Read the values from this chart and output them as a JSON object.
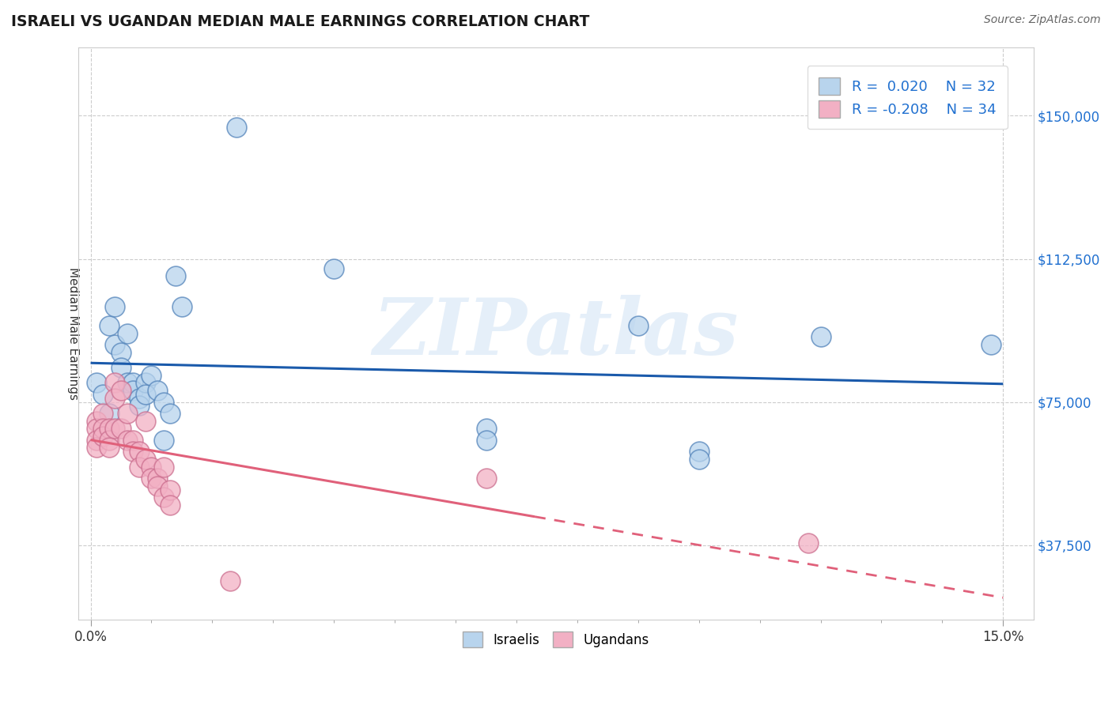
{
  "title": "ISRAELI VS UGANDAN MEDIAN MALE EARNINGS CORRELATION CHART",
  "source": "Source: ZipAtlas.com",
  "ylabel": "Median Male Earnings",
  "xlim": [
    -0.002,
    0.155
  ],
  "ylim": [
    18000,
    168000
  ],
  "yticks": [
    37500,
    75000,
    112500,
    150000
  ],
  "xticks": [
    0.0,
    0.15
  ],
  "xtick_labels": [
    "0.0%",
    "15.0%"
  ],
  "ytick_labels": [
    "$37,500",
    "$75,000",
    "$112,500",
    "$150,000"
  ],
  "grid_color": "#cccccc",
  "background_color": "#ffffff",
  "israeli_fill": "#b8d4ed",
  "ugandan_fill": "#f2b0c4",
  "israeli_edge": "#5585bb",
  "ugandan_edge": "#cc7090",
  "israeli_line_color": "#1a5aab",
  "ugandan_line_color": "#e0607a",
  "legend_text_blue": "#2070d0",
  "R_israeli": 0.02,
  "N_israeli": 32,
  "R_ugandan": -0.208,
  "N_ugandan": 34,
  "watermark": "ZIPatlas",
  "israeli_points": [
    [
      0.001,
      80000
    ],
    [
      0.002,
      77000
    ],
    [
      0.003,
      95000
    ],
    [
      0.003,
      72000
    ],
    [
      0.004,
      100000
    ],
    [
      0.004,
      90000
    ],
    [
      0.005,
      88000
    ],
    [
      0.005,
      84000
    ],
    [
      0.006,
      93000
    ],
    [
      0.006,
      80000
    ],
    [
      0.007,
      80000
    ],
    [
      0.007,
      78000
    ],
    [
      0.008,
      76000
    ],
    [
      0.008,
      74000
    ],
    [
      0.009,
      80000
    ],
    [
      0.009,
      77000
    ],
    [
      0.01,
      82000
    ],
    [
      0.011,
      78000
    ],
    [
      0.012,
      75000
    ],
    [
      0.012,
      65000
    ],
    [
      0.013,
      72000
    ],
    [
      0.014,
      108000
    ],
    [
      0.015,
      100000
    ],
    [
      0.024,
      147000
    ],
    [
      0.04,
      110000
    ],
    [
      0.065,
      68000
    ],
    [
      0.065,
      65000
    ],
    [
      0.09,
      95000
    ],
    [
      0.1,
      62000
    ],
    [
      0.1,
      60000
    ],
    [
      0.12,
      92000
    ],
    [
      0.148,
      90000
    ]
  ],
  "ugandan_points": [
    [
      0.001,
      70000
    ],
    [
      0.001,
      68000
    ],
    [
      0.001,
      65000
    ],
    [
      0.001,
      63000
    ],
    [
      0.002,
      72000
    ],
    [
      0.002,
      68000
    ],
    [
      0.002,
      66000
    ],
    [
      0.003,
      68000
    ],
    [
      0.003,
      65000
    ],
    [
      0.003,
      63000
    ],
    [
      0.004,
      80000
    ],
    [
      0.004,
      76000
    ],
    [
      0.004,
      68000
    ],
    [
      0.005,
      78000
    ],
    [
      0.005,
      68000
    ],
    [
      0.006,
      72000
    ],
    [
      0.006,
      65000
    ],
    [
      0.007,
      65000
    ],
    [
      0.007,
      62000
    ],
    [
      0.008,
      62000
    ],
    [
      0.008,
      58000
    ],
    [
      0.009,
      70000
    ],
    [
      0.009,
      60000
    ],
    [
      0.01,
      58000
    ],
    [
      0.01,
      55000
    ],
    [
      0.011,
      55000
    ],
    [
      0.011,
      53000
    ],
    [
      0.012,
      58000
    ],
    [
      0.012,
      50000
    ],
    [
      0.013,
      52000
    ],
    [
      0.013,
      48000
    ],
    [
      0.023,
      28000
    ],
    [
      0.065,
      55000
    ],
    [
      0.118,
      38000
    ]
  ]
}
